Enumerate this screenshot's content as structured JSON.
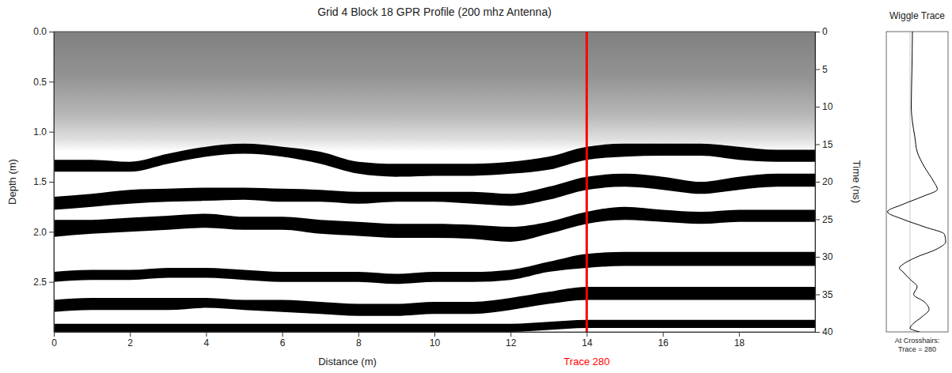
{
  "chart_data": {
    "type": "radargram",
    "title": "Grid 4 Block 18 GPR Profile (200 mhz Antenna)",
    "x_label": "Distance (m)",
    "y_label": "Depth (m)",
    "y2_label": "Time (ns)",
    "xlim": [
      0,
      20
    ],
    "xticks": [
      0,
      2,
      4,
      6,
      8,
      10,
      12,
      14,
      16,
      18
    ],
    "ylim": [
      0,
      3.0
    ],
    "yticks": [
      {
        "value": 0,
        "label": "0.0"
      },
      0.5,
      {
        "value": 1,
        "label": "1.0"
      },
      1.5,
      {
        "value": 2,
        "label": "2.0"
      },
      2.5
    ],
    "y2lim": [
      0,
      40
    ],
    "y2ticks": [
      0,
      5,
      10,
      15,
      20,
      25,
      30,
      35,
      40
    ],
    "grid": false,
    "color": "#000000",
    "x": [
      0,
      1,
      2,
      3,
      4,
      5,
      6,
      7,
      8,
      9,
      10,
      11,
      12,
      13,
      14,
      15,
      16,
      17,
      18,
      19,
      20
    ],
    "reflectors": [
      {
        "top": [
          1.28,
          1.28,
          1.3,
          1.22,
          1.15,
          1.12,
          1.15,
          1.2,
          1.3,
          1.32,
          1.32,
          1.32,
          1.3,
          1.25,
          1.15,
          1.12,
          1.12,
          1.12,
          1.15,
          1.18,
          1.18
        ],
        "bottom": [
          1.4,
          1.4,
          1.4,
          1.32,
          1.25,
          1.22,
          1.25,
          1.32,
          1.42,
          1.45,
          1.44,
          1.44,
          1.42,
          1.38,
          1.28,
          1.25,
          1.24,
          1.24,
          1.28,
          1.3,
          1.3
        ]
      },
      {
        "top": [
          1.65,
          1.62,
          1.58,
          1.57,
          1.56,
          1.56,
          1.57,
          1.58,
          1.6,
          1.6,
          1.6,
          1.6,
          1.62,
          1.55,
          1.45,
          1.42,
          1.45,
          1.5,
          1.45,
          1.42,
          1.42
        ],
        "bottom": [
          1.78,
          1.75,
          1.72,
          1.7,
          1.69,
          1.68,
          1.7,
          1.7,
          1.72,
          1.7,
          1.7,
          1.72,
          1.74,
          1.68,
          1.58,
          1.55,
          1.58,
          1.62,
          1.58,
          1.55,
          1.55
        ]
      },
      {
        "top": [
          1.88,
          1.88,
          1.86,
          1.84,
          1.82,
          1.85,
          1.85,
          1.88,
          1.9,
          1.92,
          1.92,
          1.93,
          1.95,
          1.9,
          1.8,
          1.75,
          1.78,
          1.8,
          1.78,
          1.78,
          1.78
        ],
        "bottom": [
          2.05,
          2.02,
          2.0,
          1.98,
          1.96,
          1.98,
          1.98,
          2.02,
          2.04,
          2.06,
          2.06,
          2.07,
          2.1,
          2.02,
          1.92,
          1.88,
          1.9,
          1.92,
          1.9,
          1.9,
          1.9
        ]
      },
      {
        "top": [
          2.4,
          2.38,
          2.38,
          2.36,
          2.36,
          2.38,
          2.4,
          2.4,
          2.4,
          2.42,
          2.4,
          2.4,
          2.38,
          2.3,
          2.22,
          2.2,
          2.2,
          2.2,
          2.2,
          2.2,
          2.2
        ],
        "bottom": [
          2.5,
          2.48,
          2.48,
          2.46,
          2.46,
          2.48,
          2.5,
          2.5,
          2.5,
          2.52,
          2.5,
          2.5,
          2.48,
          2.4,
          2.36,
          2.34,
          2.34,
          2.34,
          2.34,
          2.34,
          2.34
        ]
      },
      {
        "top": [
          2.68,
          2.66,
          2.66,
          2.66,
          2.66,
          2.68,
          2.68,
          2.7,
          2.72,
          2.72,
          2.7,
          2.7,
          2.66,
          2.6,
          2.55,
          2.55,
          2.55,
          2.55,
          2.55,
          2.55,
          2.55
        ],
        "bottom": [
          2.8,
          2.78,
          2.78,
          2.78,
          2.76,
          2.78,
          2.8,
          2.82,
          2.84,
          2.84,
          2.82,
          2.82,
          2.78,
          2.72,
          2.68,
          2.68,
          2.68,
          2.68,
          2.68,
          2.68,
          2.68
        ]
      },
      {
        "top": [
          2.92,
          2.92,
          2.92,
          2.92,
          2.92,
          2.92,
          2.92,
          2.92,
          2.92,
          2.92,
          2.92,
          2.92,
          2.92,
          2.9,
          2.88,
          2.88,
          2.88,
          2.88,
          2.88,
          2.88,
          2.88
        ],
        "bottom": [
          3.0,
          3.0,
          3.0,
          3.0,
          3.0,
          3.0,
          3.0,
          3.0,
          3.0,
          3.0,
          3.0,
          3.0,
          3.0,
          2.98,
          2.96,
          2.96,
          2.96,
          2.96,
          2.96,
          2.96,
          2.96
        ]
      }
    ],
    "crosshair": {
      "x": 14,
      "label": "Trace 280",
      "color": "#ff0000"
    },
    "wiggle": {
      "title": "Wiggle Trace",
      "caption": [
        "At Crosshairs:",
        "Trace = 280"
      ],
      "color": "#000000",
      "xlim": [
        -1.0,
        1.6
      ],
      "time": [
        0,
        5,
        10,
        12,
        14,
        16,
        18,
        20,
        21,
        22,
        23,
        24,
        25,
        26,
        27,
        28,
        29,
        30,
        31,
        31.5,
        32,
        33,
        34,
        35,
        36,
        37,
        38,
        39,
        39.5,
        40
      ],
      "amplitude": [
        0.1,
        0.08,
        0.05,
        0.1,
        0.2,
        0.3,
        0.6,
        1.0,
        1.15,
        0.5,
        -0.3,
        -0.95,
        -0.3,
        0.6,
        1.45,
        1.5,
        1.1,
        0.3,
        -0.3,
        -0.45,
        -0.3,
        0.0,
        0.3,
        0.15,
        0.6,
        0.8,
        0.5,
        0.1,
        0.0,
        0.4
      ]
    }
  }
}
